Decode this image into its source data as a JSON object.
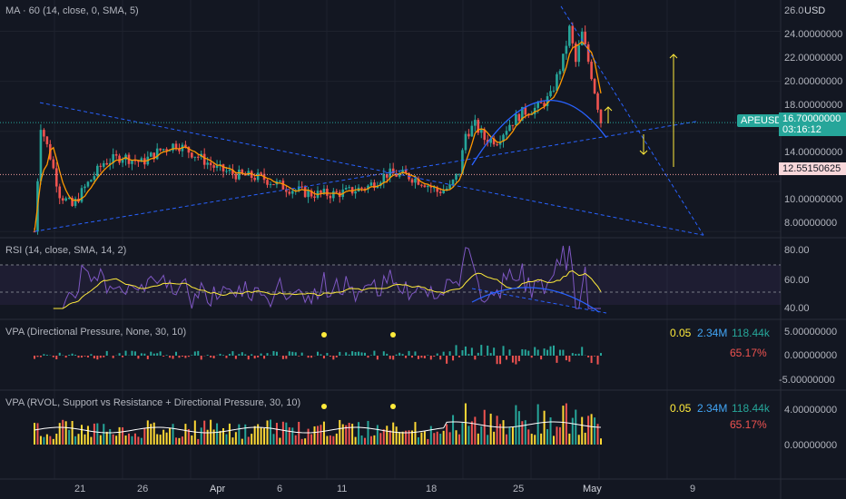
{
  "panes": {
    "main": {
      "label": "MA · 60 (14, close, 0, SMA, 5)"
    },
    "rsi": {
      "label": "RSI (14, close, SMA, 14, 2)"
    },
    "vpa1": {
      "label": "VPA (Directional Pressure, None, 30, 10)",
      "v1": "0.05",
      "v2": "2.34M",
      "v3": "118.44k",
      "v4": "65.17%"
    },
    "vpa2": {
      "label": "VPA (RVOL, Support vs Resistance + Directional Pressure, 30, 10)",
      "v1": "0.05",
      "v2": "2.34M",
      "v3": "118.44k",
      "v4": "65.17%"
    }
  },
  "price_axis": {
    "currency": "USD",
    "ticks": [
      "26.0",
      "24.00000000",
      "22.00000000",
      "20.00000000",
      "18.00000000",
      "14.00000000",
      "10.00000000",
      "8.00000000"
    ],
    "rsi_ticks": [
      "80.00",
      "60.00",
      "40.00"
    ],
    "vpa1_ticks": [
      "5.00000000",
      "0.00000000",
      "-5.00000000"
    ],
    "vpa2_ticks": [
      "4.00000000",
      "0.00000000"
    ]
  },
  "tags": {
    "symbol": "APEUSD",
    "last_price": "16.70000000",
    "countdown": "03:16:12",
    "level_price": "12.55150625"
  },
  "time_axis": [
    "21",
    "26",
    "Apr",
    "6",
    "11",
    "18",
    "25",
    "May",
    "9"
  ],
  "colors": {
    "bg": "#131722",
    "up": "#26a69a",
    "down": "#ef5350",
    "ma": "#ff9800",
    "rsi": "#7e57c2",
    "rsi_ma": "#ffeb3b",
    "trend": "#2962ff",
    "arrow": "#ffeb3b"
  },
  "chart_data": {
    "type": "candlestick",
    "title": "MA · 60 (14, close, 0, SMA, 5)",
    "symbol": "APEUSD",
    "ylim": [
      7.5,
      26.5
    ],
    "last_price": 16.7,
    "horizontal_level": 12.55150625,
    "close_path": [
      [
        0,
        8.0
      ],
      [
        2,
        16.5
      ],
      [
        5,
        14.0
      ],
      [
        8,
        11.0
      ],
      [
        12,
        10.0
      ],
      [
        16,
        11.5
      ],
      [
        22,
        13.5
      ],
      [
        28,
        14.0
      ],
      [
        34,
        13.5
      ],
      [
        40,
        14.5
      ],
      [
        45,
        15.0
      ],
      [
        52,
        14.0
      ],
      [
        58,
        13.0
      ],
      [
        65,
        12.5
      ],
      [
        72,
        12.3
      ],
      [
        80,
        11.5
      ],
      [
        88,
        11.0
      ],
      [
        95,
        11.0
      ],
      [
        100,
        11.2
      ],
      [
        106,
        11.6
      ],
      [
        112,
        12.6
      ],
      [
        118,
        12.5
      ],
      [
        124,
        11.9
      ],
      [
        128,
        11.2
      ],
      [
        132,
        11.5
      ],
      [
        135,
        12.8
      ],
      [
        137,
        15.8
      ],
      [
        140,
        16.5
      ],
      [
        143,
        15.4
      ],
      [
        147,
        15.3
      ],
      [
        151,
        16.6
      ],
      [
        155,
        17.5
      ],
      [
        160,
        17.9
      ],
      [
        164,
        18.8
      ],
      [
        168,
        21.8
      ],
      [
        170,
        24.2
      ],
      [
        172,
        21.5
      ],
      [
        174,
        23.8
      ],
      [
        177,
        20.5
      ],
      [
        180,
        16.8
      ]
    ],
    "annotations": [
      "descending trendline",
      "ascending trendline",
      "arc",
      "vertical arrows"
    ]
  }
}
